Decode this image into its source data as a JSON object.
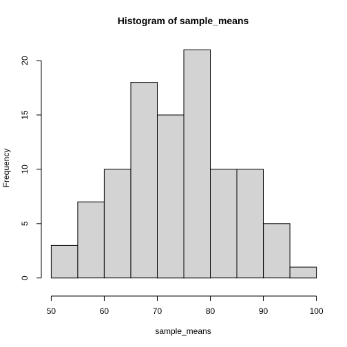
{
  "chart_data": {
    "type": "histogram",
    "title": "Histogram of sample_means",
    "xlabel": "sample_means",
    "ylabel": "Frequency",
    "bins": [
      {
        "start": 50,
        "end": 55,
        "count": 3
      },
      {
        "start": 55,
        "end": 60,
        "count": 7
      },
      {
        "start": 60,
        "end": 65,
        "count": 10
      },
      {
        "start": 65,
        "end": 70,
        "count": 18
      },
      {
        "start": 70,
        "end": 75,
        "count": 15
      },
      {
        "start": 75,
        "end": 80,
        "count": 21
      },
      {
        "start": 80,
        "end": 85,
        "count": 10
      },
      {
        "start": 85,
        "end": 90,
        "count": 10
      },
      {
        "start": 90,
        "end": 95,
        "count": 5
      },
      {
        "start": 95,
        "end": 100,
        "count": 1
      }
    ],
    "x_ticks": [
      50,
      60,
      70,
      80,
      90,
      100
    ],
    "y_ticks": [
      0,
      5,
      10,
      15,
      20
    ],
    "xlim": [
      50,
      100
    ],
    "ylim": [
      0,
      21
    ],
    "grid": false,
    "bar_color": "#d3d3d3",
    "edge_color": "#000000"
  }
}
